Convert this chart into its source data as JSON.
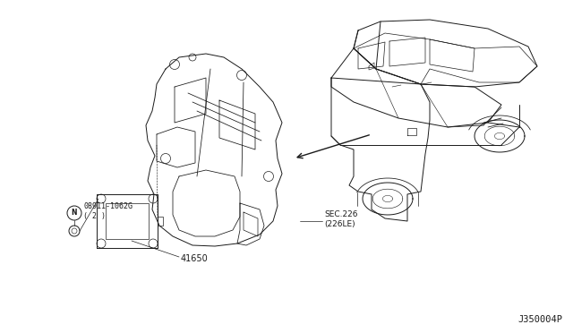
{
  "bg_color": "#ffffff",
  "line_color": "#1a1a1a",
  "fig_width": 6.4,
  "fig_height": 3.72,
  "dpi": 100,
  "diagram_code": "J350004P",
  "part_41650_label": "41650",
  "part_bolt_label": "08911-1062G\n( 2 )",
  "sec_label": "SEC.226\n(226LE)",
  "bolt_sym": "N"
}
